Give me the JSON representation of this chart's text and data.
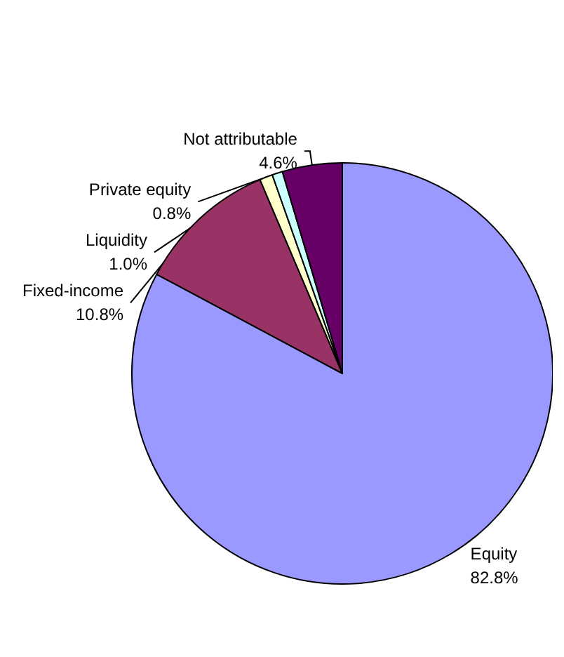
{
  "chart_data": {
    "type": "pie",
    "categories": [
      "Equity",
      "Fixed-income",
      "Liquidity",
      "Private equity",
      "Not attributable"
    ],
    "values": [
      82.8,
      10.8,
      1.0,
      0.8,
      4.6
    ],
    "colors": [
      "#9999ff",
      "#993366",
      "#ffffcc",
      "#ccffff",
      "#660066"
    ],
    "value_labels": [
      "82.8%",
      "10.8%",
      "1.0%",
      "0.8%",
      "4.6%"
    ]
  }
}
